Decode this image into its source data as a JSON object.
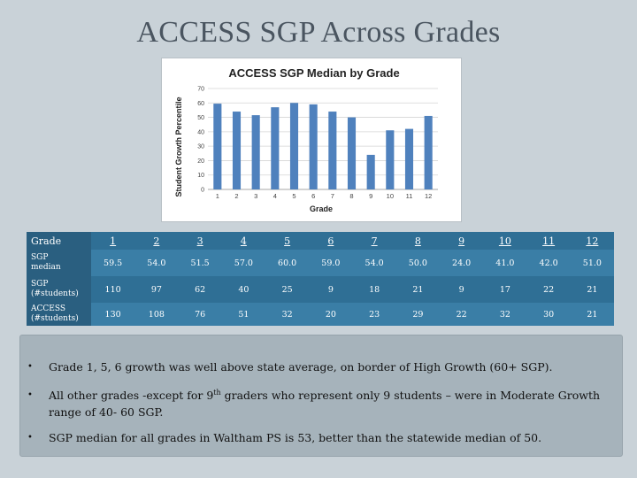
{
  "slide": {
    "title": "ACCESS SGP Across Grades"
  },
  "chart_data": {
    "type": "bar",
    "title": "ACCESS SGP Median by Grade",
    "xlabel": "Grade",
    "ylabel": "Student Growth Percentile",
    "categories": [
      "1",
      "2",
      "3",
      "4",
      "5",
      "6",
      "7",
      "8",
      "9",
      "10",
      "11",
      "12"
    ],
    "values": [
      59.5,
      54.0,
      51.5,
      57.0,
      60.0,
      59.0,
      54.0,
      50.0,
      24.0,
      41.0,
      42.0,
      51.0
    ],
    "ylim": [
      0,
      70
    ],
    "yticks": [
      0,
      10,
      20,
      30,
      40,
      50,
      60,
      70
    ],
    "grid": true,
    "bar_color": "#4f81bd"
  },
  "table": {
    "header_label": "Grade",
    "grades": [
      "1",
      "2",
      "3",
      "4",
      "5",
      "6",
      "7",
      "8",
      "9",
      "10",
      "11",
      "12"
    ],
    "rows": [
      {
        "label_lines": [
          "SGP",
          "median"
        ],
        "values": [
          "59.5",
          "54.0",
          "51.5",
          "57.0",
          "60.0",
          "59.0",
          "54.0",
          "50.0",
          "24.0",
          "41.0",
          "42.0",
          "51.0"
        ]
      },
      {
        "label_lines": [
          "SGP",
          "(#students)"
        ],
        "values": [
          "110",
          "97",
          "62",
          "40",
          "25",
          "9",
          "18",
          "21",
          "9",
          "17",
          "22",
          "21"
        ]
      },
      {
        "label_lines": [
          "ACCESS",
          "(#students)"
        ],
        "values": [
          "130",
          "108",
          "76",
          "51",
          "32",
          "20",
          "23",
          "29",
          "22",
          "32",
          "30",
          "21"
        ]
      }
    ]
  },
  "bullets": {
    "marker": "•",
    "b1": "Grade 1, 5, 6 growth was well above state average, on border of High Growth (60+ SGP).",
    "b2_pre": "All other grades -except for 9",
    "b2_sup": "th",
    "b2_post": " graders who represent only 9 students – were in Moderate Growth range of  40- 60 SGP.",
    "b3": "SGP median for all grades in Waltham PS is 53, better than the statewide median of 50."
  }
}
